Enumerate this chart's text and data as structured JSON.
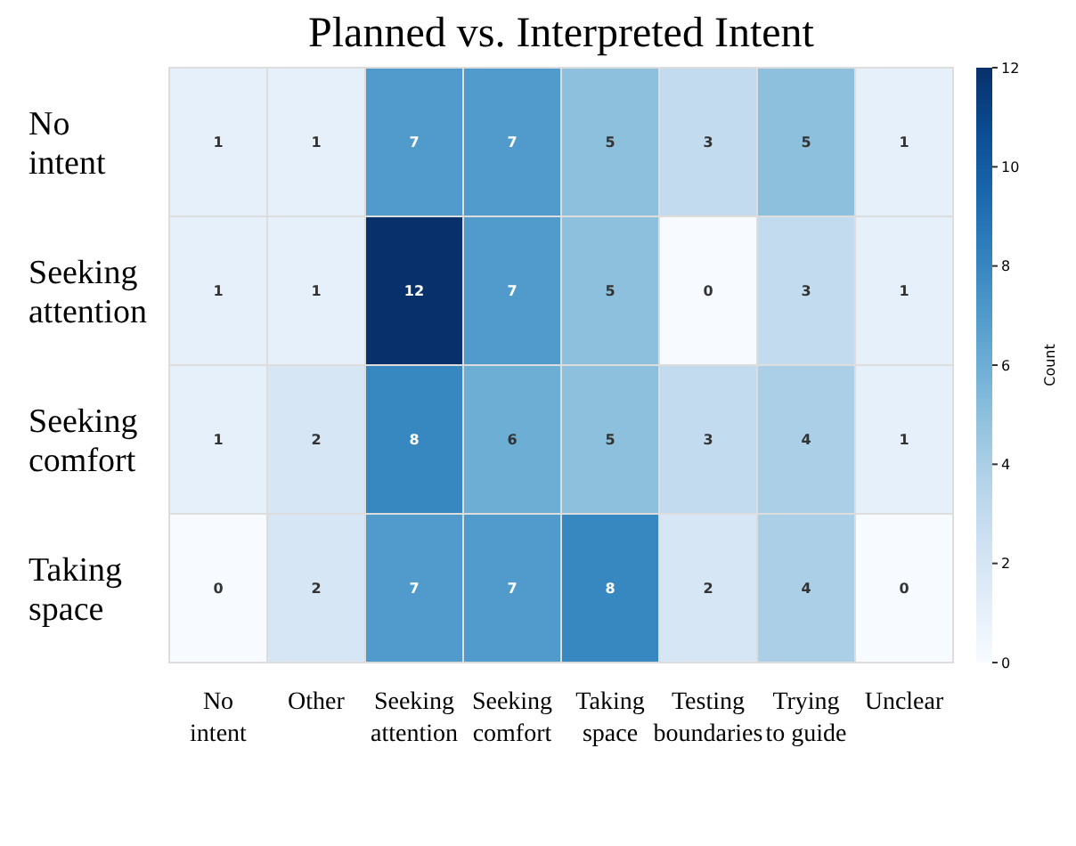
{
  "chart_data": {
    "type": "heatmap",
    "title": "Planned vs. Interpreted Intent",
    "categories": [
      "No intent",
      "Other",
      "Seeking attention",
      "Seeking comfort",
      "Taking space",
      "Testing boundaries",
      "Trying to guide",
      "Unclear"
    ],
    "y_categories": [
      "No intent",
      "Seeking attention",
      "Seeking comfort",
      "Taking space"
    ],
    "cells": [
      [
        1,
        1,
        7,
        7,
        5,
        3,
        5,
        1
      ],
      [
        1,
        1,
        12,
        7,
        5,
        0,
        3,
        1
      ],
      [
        1,
        2,
        8,
        6,
        5,
        3,
        4,
        1
      ],
      [
        0,
        2,
        7,
        7,
        8,
        2,
        4,
        0
      ]
    ],
    "clim": [
      0,
      12
    ],
    "cticks": [
      0,
      2,
      4,
      6,
      8,
      10,
      12
    ],
    "clabel": "Count",
    "data_labels": true
  }
}
